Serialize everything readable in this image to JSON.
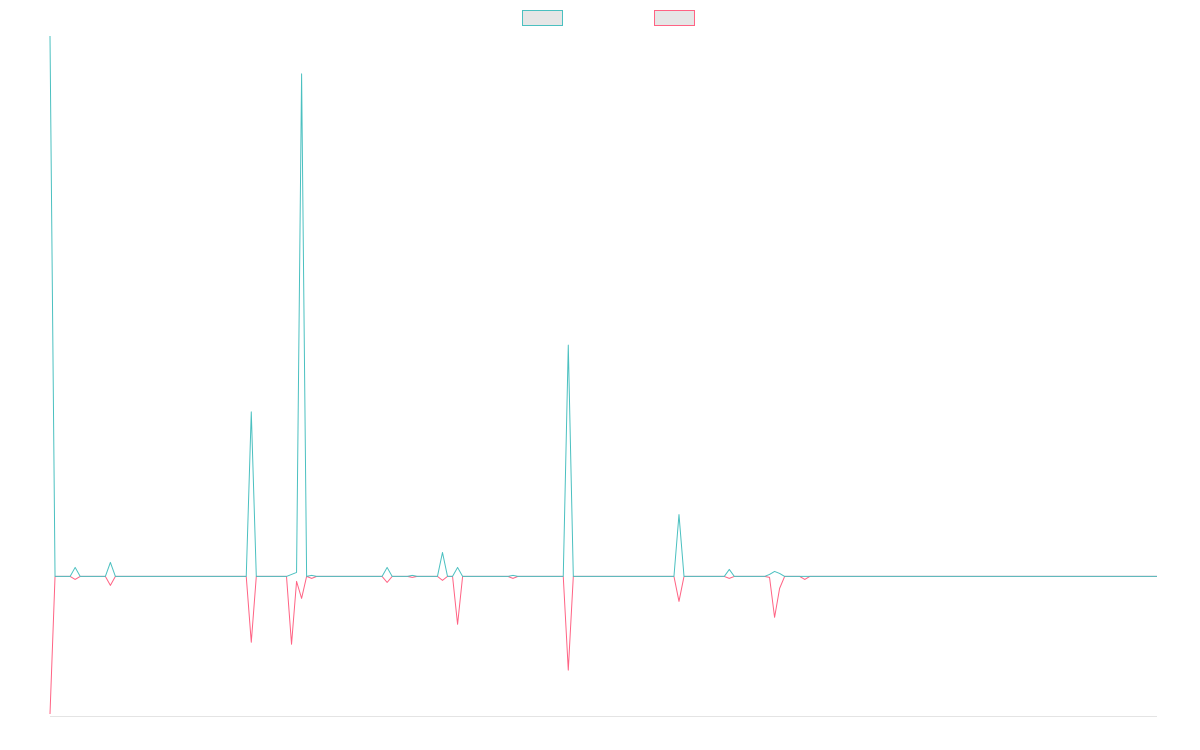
{
  "chart_data": {
    "type": "line",
    "categories": [
      null,
      null,
      null,
      null,
      null,
      null,
      null,
      null,
      null,
      null,
      null,
      null,
      null,
      null,
      null,
      null,
      null,
      null,
      null,
      null,
      null,
      null,
      null,
      null,
      null,
      null,
      null,
      null,
      null,
      null,
      null,
      null,
      null,
      null,
      null,
      null,
      null,
      null,
      null,
      null,
      null,
      null,
      null,
      null,
      null,
      null,
      null,
      null,
      null,
      null,
      null,
      null,
      null,
      null,
      null,
      null,
      null,
      null,
      null,
      null,
      null,
      null,
      null,
      null,
      null,
      null,
      null,
      null,
      null,
      null,
      null,
      null,
      null,
      null,
      null,
      null,
      null,
      null,
      null,
      null,
      null,
      null,
      null,
      null,
      null,
      null,
      null,
      null,
      null,
      null,
      null,
      null,
      null,
      null,
      null,
      null,
      null,
      null,
      null,
      null,
      null,
      null,
      null,
      null,
      null,
      null,
      null,
      null,
      null,
      null,
      null,
      null,
      null,
      null,
      null,
      null,
      null,
      null,
      null,
      null,
      null,
      null,
      null,
      null,
      null,
      null,
      null,
      null,
      null,
      null,
      null,
      null,
      null,
      null,
      null,
      null,
      null,
      null,
      null,
      null,
      null,
      null,
      null,
      null,
      null,
      null,
      null,
      null,
      null,
      null,
      null,
      null,
      null,
      null,
      null,
      null,
      null,
      null,
      null,
      null,
      null,
      null,
      null,
      null,
      null,
      null,
      null,
      null,
      null,
      null,
      null,
      null,
      null,
      null,
      null,
      null,
      null,
      null,
      null,
      null,
      null,
      null,
      null,
      null,
      null,
      null,
      null,
      null,
      null,
      null,
      null,
      null,
      null,
      null,
      null,
      null,
      null,
      null,
      null,
      null,
      null,
      null,
      null,
      null,
      null,
      null,
      null,
      null,
      null,
      null,
      null,
      null,
      null,
      null,
      null,
      null,
      null,
      null,
      null,
      null,
      null
    ],
    "series": [
      {
        "color": "#4bc0c0",
        "values": [
          542,
          0,
          0,
          0,
          0,
          9,
          0,
          0,
          0,
          0,
          0,
          0,
          14,
          0,
          0,
          0,
          0,
          0,
          0,
          0,
          0,
          0,
          0,
          0,
          0,
          0,
          0,
          0,
          0,
          0,
          0,
          0,
          0,
          0,
          0,
          0,
          0,
          0,
          0,
          0,
          165,
          0,
          0,
          0,
          0,
          0,
          0,
          0,
          2,
          4,
          504,
          0,
          1,
          0,
          0,
          0,
          0,
          0,
          0,
          0,
          0,
          0,
          0,
          0,
          0,
          0,
          0,
          9,
          0,
          0,
          0,
          0,
          1,
          0,
          0,
          0,
          0,
          0,
          24,
          0,
          0,
          9,
          0,
          0,
          0,
          0,
          0,
          0,
          0,
          0,
          0,
          0,
          1,
          0,
          0,
          0,
          0,
          0,
          0,
          0,
          0,
          0,
          0,
          232,
          0,
          0,
          0,
          0,
          0,
          0,
          0,
          0,
          0,
          0,
          0,
          0,
          0,
          0,
          0,
          0,
          0,
          0,
          0,
          0,
          0,
          62,
          0,
          0,
          0,
          0,
          0,
          0,
          0,
          0,
          0,
          7,
          0,
          0,
          0,
          0,
          0,
          0,
          0,
          2,
          5,
          3,
          0,
          0,
          0,
          0,
          0,
          0,
          0,
          0,
          0,
          0,
          0,
          0,
          0,
          0,
          0,
          0,
          0,
          0,
          0,
          0,
          0,
          0,
          0,
          0,
          0,
          0,
          0,
          0,
          0,
          0,
          0,
          0,
          0,
          0,
          0,
          0,
          0,
          0,
          0,
          0,
          0,
          0,
          0,
          0,
          0,
          0,
          0,
          0,
          0,
          0,
          0,
          0,
          0,
          0,
          0,
          0,
          0,
          0,
          0,
          0,
          0,
          0,
          0,
          0,
          0,
          0,
          0,
          0,
          0,
          0,
          0,
          0,
          0,
          0,
          0
        ]
      },
      {
        "color": "#ff6384",
        "values": [
          -138,
          0,
          0,
          0,
          0,
          -3,
          0,
          0,
          0,
          0,
          0,
          0,
          -9,
          0,
          0,
          0,
          0,
          0,
          0,
          0,
          0,
          0,
          0,
          0,
          0,
          0,
          0,
          0,
          0,
          0,
          0,
          0,
          0,
          0,
          0,
          0,
          0,
          0,
          0,
          0,
          -66,
          0,
          0,
          0,
          0,
          0,
          0,
          0,
          -68,
          -5,
          -22,
          0,
          -2,
          0,
          0,
          0,
          0,
          0,
          0,
          0,
          0,
          0,
          0,
          0,
          0,
          0,
          0,
          -6,
          0,
          0,
          0,
          0,
          -1,
          0,
          0,
          0,
          0,
          0,
          -4,
          0,
          0,
          -48,
          0,
          0,
          0,
          0,
          0,
          0,
          0,
          0,
          0,
          0,
          -2,
          0,
          0,
          0,
          0,
          0,
          0,
          0,
          0,
          0,
          0,
          -94,
          0,
          0,
          0,
          0,
          0,
          0,
          0,
          0,
          0,
          0,
          0,
          0,
          0,
          0,
          0,
          0,
          0,
          0,
          0,
          0,
          0,
          -25,
          0,
          0,
          0,
          0,
          0,
          0,
          0,
          0,
          0,
          -2,
          0,
          0,
          0,
          0,
          0,
          0,
          0,
          -1,
          -41,
          -12,
          0,
          0,
          0,
          0,
          -3,
          0,
          0,
          0,
          0,
          0,
          0,
          0,
          0,
          0,
          0,
          0,
          0,
          0,
          0,
          0,
          0,
          0,
          0,
          0,
          0,
          0,
          0,
          0,
          0,
          0,
          0,
          0,
          0,
          0,
          0,
          0,
          0,
          0,
          0,
          0,
          0,
          0,
          0,
          0,
          0,
          0,
          0,
          0,
          0,
          0,
          0,
          0,
          0,
          0,
          0,
          0,
          0,
          0,
          0,
          0,
          0,
          0,
          0,
          0,
          0,
          0,
          0,
          0,
          0,
          0,
          0,
          0,
          0,
          0,
          0
        ]
      }
    ],
    "ylim": [
      -140,
      545
    ],
    "legend": "top"
  }
}
